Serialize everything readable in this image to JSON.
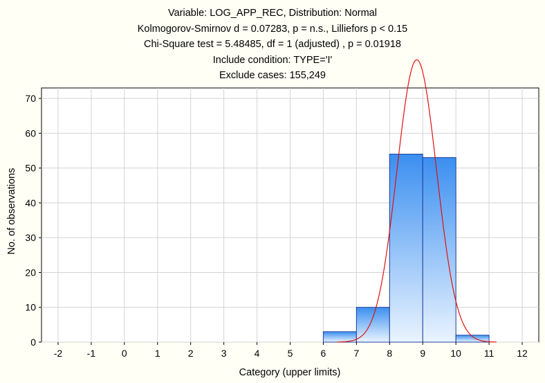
{
  "header": {
    "line1": "Variable: LOG_APP_REC, Distribution: Normal",
    "line2": "Kolmogorov-Smirnov d = 0.07283, p = n.s., Lilliefors p < 0.15",
    "line3": "Chi-Square test = 5.48485, df = 1 (adjusted) , p = 0.01918",
    "line4": "Include condition: TYPE='I'",
    "line5": "Exclude cases: 155,249"
  },
  "chart_data": {
    "type": "bar",
    "title": "Variable: LOG_APP_REC, Distribution: Normal",
    "xlabel": "Category (upper limits)",
    "ylabel": "No. of observations",
    "xlim": [
      -2.5,
      12.5
    ],
    "ylim": [
      0,
      73
    ],
    "x_ticks": [
      -2,
      -1,
      0,
      1,
      2,
      3,
      4,
      5,
      6,
      7,
      8,
      9,
      10,
      11,
      12
    ],
    "y_ticks": [
      0,
      10,
      20,
      30,
      40,
      50,
      60,
      70
    ],
    "grid": true,
    "bins": [
      {
        "upper": -2,
        "value": 0
      },
      {
        "upper": -1,
        "value": 0
      },
      {
        "upper": 0,
        "value": 0
      },
      {
        "upper": 1,
        "value": 0
      },
      {
        "upper": 2,
        "value": 0
      },
      {
        "upper": 3,
        "value": 0
      },
      {
        "upper": 4,
        "value": 0
      },
      {
        "upper": 5,
        "value": 0
      },
      {
        "upper": 6,
        "value": 0
      },
      {
        "upper": 7,
        "value": 3
      },
      {
        "upper": 8,
        "value": 10
      },
      {
        "upper": 9,
        "value": 54
      },
      {
        "upper": 10,
        "value": 53
      },
      {
        "upper": 11,
        "value": 2
      },
      {
        "upper": 12,
        "value": 0
      }
    ],
    "normal_fit": {
      "mean": 8.82,
      "sd": 0.6,
      "total": 122,
      "bin_width": 1
    },
    "colors": {
      "bar_top": "#3b8ff0",
      "bar_bottom": "#ffffff",
      "bar_stroke": "#1f3f9f",
      "curve": "#e01010",
      "grid": "#d3d3d3",
      "background": "#fffff5",
      "plot_background": "#ffffff"
    }
  }
}
